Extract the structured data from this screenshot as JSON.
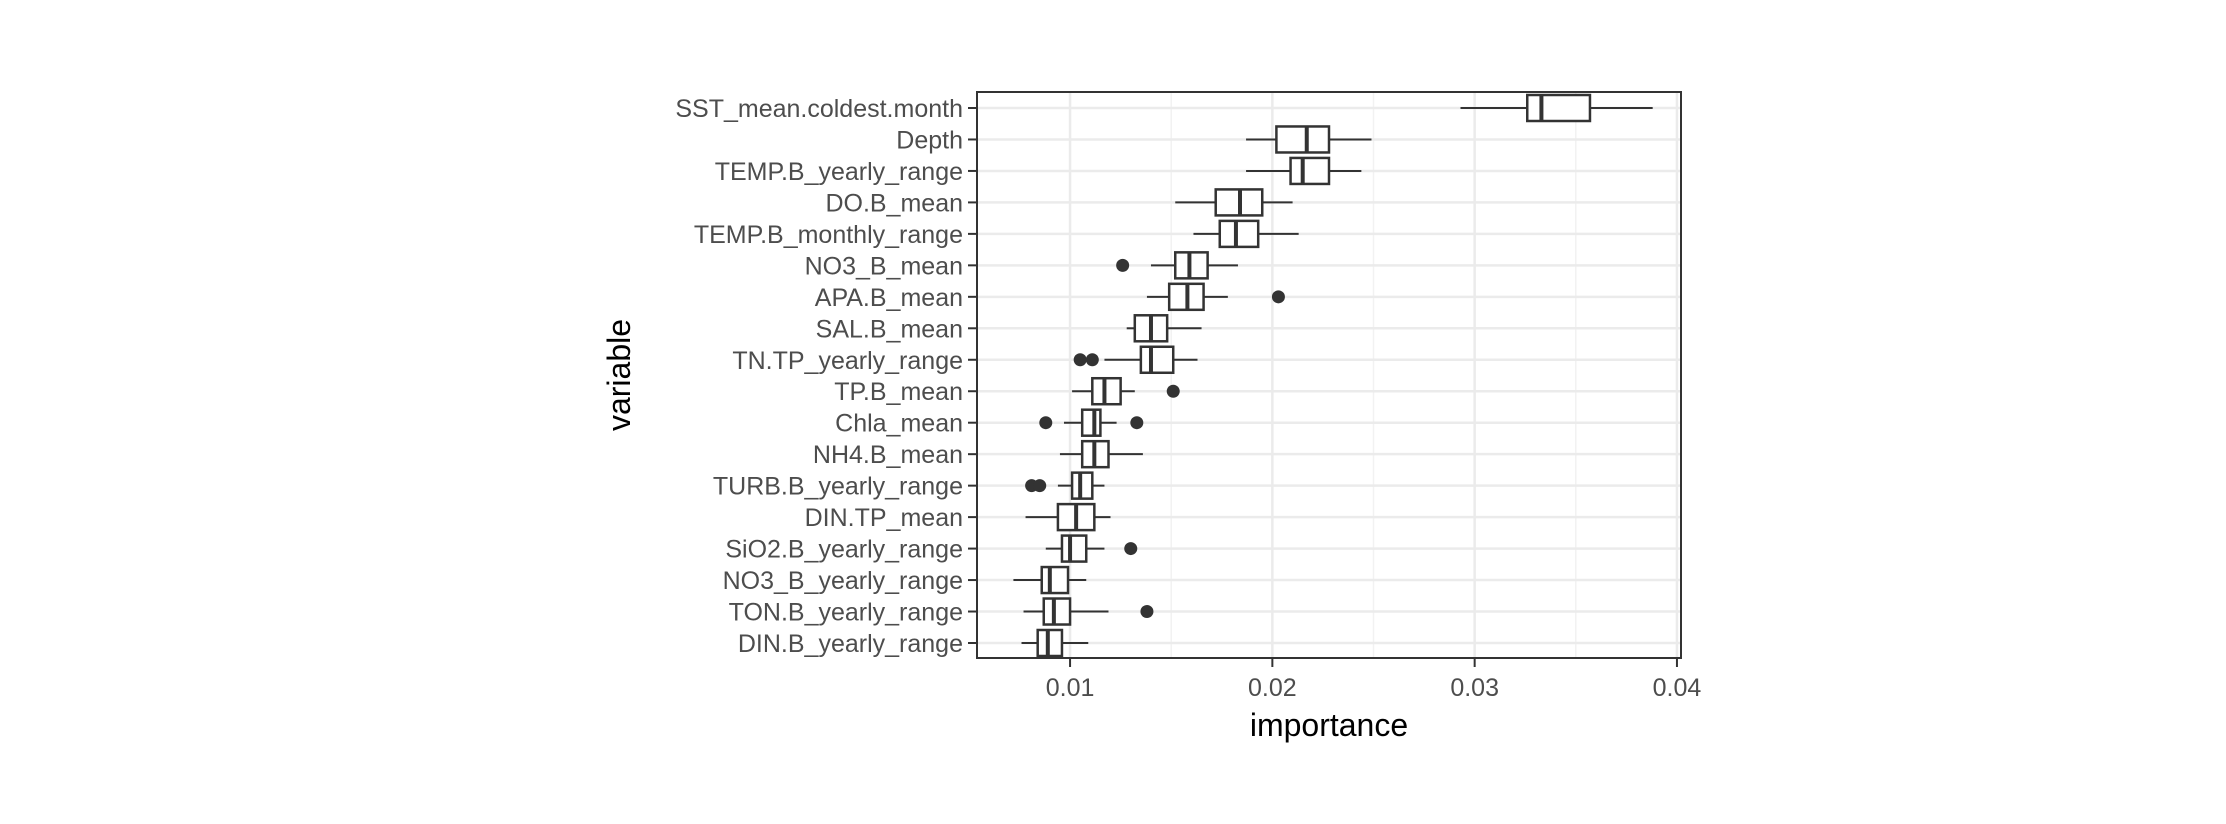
{
  "chart_data": {
    "type": "boxplot",
    "orientation": "horizontal",
    "xlabel": "importance",
    "ylabel": "variable",
    "xlim": [
      0.0054,
      0.0402
    ],
    "xticks": [
      0.01,
      0.02,
      0.03,
      0.04
    ],
    "xtick_labels": [
      "0.01",
      "0.02",
      "0.03",
      "0.04"
    ],
    "grid": true,
    "theme": "bw",
    "box_fill": "#ffffff",
    "line_color": "#333333",
    "outlier_color": "#333333",
    "categories": [
      "SST_mean.coldest.month",
      "Depth",
      "TEMP.B_yearly_range",
      "DO.B_mean",
      "TEMP.B_monthly_range",
      "NO3_B_mean",
      "APA.B_mean",
      "SAL.B_mean",
      "TN.TP_yearly_range",
      "TP.B_mean",
      "Chla_mean",
      "NH4.B_mean",
      "TURB.B_yearly_range",
      "DIN.TP_mean",
      "SiO2.B_yearly_range",
      "NO3_B_yearly_range",
      "TON.B_yearly_range",
      "DIN.B_yearly_range"
    ],
    "boxes": [
      {
        "variable": "SST_mean.coldest.month",
        "whisker_low": 0.0293,
        "q1": 0.0326,
        "median": 0.0333,
        "q3": 0.0357,
        "whisker_high": 0.0388,
        "outliers": []
      },
      {
        "variable": "Depth",
        "whisker_low": 0.0187,
        "q1": 0.0202,
        "median": 0.0217,
        "q3": 0.0228,
        "whisker_high": 0.0249,
        "outliers": []
      },
      {
        "variable": "TEMP.B_yearly_range",
        "whisker_low": 0.0187,
        "q1": 0.0209,
        "median": 0.0215,
        "q3": 0.0228,
        "whisker_high": 0.0244,
        "outliers": []
      },
      {
        "variable": "DO.B_mean",
        "whisker_low": 0.0152,
        "q1": 0.0172,
        "median": 0.0184,
        "q3": 0.0195,
        "whisker_high": 0.021,
        "outliers": []
      },
      {
        "variable": "TEMP.B_monthly_range",
        "whisker_low": 0.0161,
        "q1": 0.0174,
        "median": 0.0182,
        "q3": 0.0193,
        "whisker_high": 0.0213,
        "outliers": []
      },
      {
        "variable": "NO3_B_mean",
        "whisker_low": 0.014,
        "q1": 0.0152,
        "median": 0.0159,
        "q3": 0.0168,
        "whisker_high": 0.0183,
        "outliers": [
          0.0126
        ]
      },
      {
        "variable": "APA.B_mean",
        "whisker_low": 0.0138,
        "q1": 0.0149,
        "median": 0.0158,
        "q3": 0.0166,
        "whisker_high": 0.0178,
        "outliers": [
          0.0203
        ]
      },
      {
        "variable": "SAL.B_mean",
        "whisker_low": 0.0128,
        "q1": 0.0132,
        "median": 0.014,
        "q3": 0.0148,
        "whisker_high": 0.0165,
        "outliers": []
      },
      {
        "variable": "TN.TP_yearly_range",
        "whisker_low": 0.0117,
        "q1": 0.0135,
        "median": 0.014,
        "q3": 0.0151,
        "whisker_high": 0.0163,
        "outliers": [
          0.0105,
          0.0111
        ]
      },
      {
        "variable": "TP.B_mean",
        "whisker_low": 0.0101,
        "q1": 0.0111,
        "median": 0.0117,
        "q3": 0.0125,
        "whisker_high": 0.0132,
        "outliers": [
          0.0151
        ]
      },
      {
        "variable": "Chla_mean",
        "whisker_low": 0.0097,
        "q1": 0.0106,
        "median": 0.0112,
        "q3": 0.0115,
        "whisker_high": 0.0123,
        "outliers": [
          0.0088,
          0.0133
        ]
      },
      {
        "variable": "NH4.B_mean",
        "whisker_low": 0.0095,
        "q1": 0.0106,
        "median": 0.0112,
        "q3": 0.0119,
        "whisker_high": 0.0136,
        "outliers": []
      },
      {
        "variable": "TURB.B_yearly_range",
        "whisker_low": 0.0094,
        "q1": 0.0101,
        "median": 0.0105,
        "q3": 0.0111,
        "whisker_high": 0.0117,
        "outliers": [
          0.0081,
          0.0085
        ]
      },
      {
        "variable": "DIN.TP_mean",
        "whisker_low": 0.0078,
        "q1": 0.0094,
        "median": 0.0103,
        "q3": 0.0112,
        "whisker_high": 0.012,
        "outliers": []
      },
      {
        "variable": "SiO2.B_yearly_range",
        "whisker_low": 0.0088,
        "q1": 0.0096,
        "median": 0.01,
        "q3": 0.0108,
        "whisker_high": 0.0117,
        "outliers": [
          0.013
        ]
      },
      {
        "variable": "NO3_B_yearly_range",
        "whisker_low": 0.0072,
        "q1": 0.0086,
        "median": 0.009,
        "q3": 0.0099,
        "whisker_high": 0.0108,
        "outliers": []
      },
      {
        "variable": "TON.B_yearly_range",
        "whisker_low": 0.0077,
        "q1": 0.0087,
        "median": 0.0092,
        "q3": 0.01,
        "whisker_high": 0.0119,
        "outliers": [
          0.0138
        ]
      },
      {
        "variable": "DIN.B_yearly_range",
        "whisker_low": 0.0076,
        "q1": 0.0084,
        "median": 0.0089,
        "q3": 0.0096,
        "whisker_high": 0.0109,
        "outliers": []
      }
    ]
  }
}
